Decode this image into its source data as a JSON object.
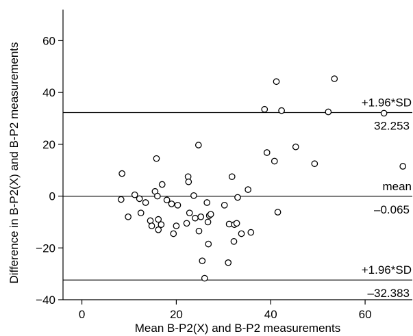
{
  "chart_data": {
    "type": "scatter",
    "title": "",
    "xlabel": "Mean B-P2(X) and B-P2 measurements",
    "ylabel": "Difference in B-P2(X) and B-P2 measurements",
    "xlim": [
      -4,
      70
    ],
    "ylim": [
      -40,
      72
    ],
    "x_ticks": [
      0,
      20,
      40,
      60
    ],
    "y_ticks": [
      -40,
      -20,
      0,
      20,
      40,
      60
    ],
    "grid": false,
    "reference_lines": [
      {
        "y": 32.253,
        "label": "+1.96*SD",
        "value_label": "32.253"
      },
      {
        "y": -0.065,
        "label": "mean",
        "value_label": "–0.065"
      },
      {
        "y": -32.383,
        "label": "+1.96*SD",
        "value_label": "–32.383"
      }
    ],
    "points": [
      [
        8.5,
        8.7
      ],
      [
        8.3,
        -1.3
      ],
      [
        9.8,
        -8.0
      ],
      [
        11.2,
        0.5
      ],
      [
        12.2,
        -1.0
      ],
      [
        12.5,
        -6.5
      ],
      [
        13.5,
        -2.5
      ],
      [
        14.5,
        -9.5
      ],
      [
        14.8,
        -11.5
      ],
      [
        15.5,
        1.8
      ],
      [
        15.8,
        14.5
      ],
      [
        16.0,
        0.0
      ],
      [
        16.2,
        -9.0
      ],
      [
        16.2,
        -13.0
      ],
      [
        16.8,
        -11.0
      ],
      [
        17.0,
        4.5
      ],
      [
        18.0,
        -1.5
      ],
      [
        19.0,
        -3.0
      ],
      [
        19.4,
        -14.5
      ],
      [
        20.0,
        -11.5
      ],
      [
        20.3,
        -3.5
      ],
      [
        22.2,
        -10.5
      ],
      [
        22.5,
        7.5
      ],
      [
        22.6,
        5.5
      ],
      [
        22.8,
        -6.5
      ],
      [
        23.7,
        0.2
      ],
      [
        24.0,
        -8.5
      ],
      [
        24.7,
        19.7
      ],
      [
        24.8,
        -13.5
      ],
      [
        25.2,
        -8.0
      ],
      [
        25.5,
        -25.0
      ],
      [
        26.0,
        -31.7
      ],
      [
        26.5,
        -2.5
      ],
      [
        26.7,
        -10.0
      ],
      [
        26.8,
        -18.5
      ],
      [
        27.0,
        -7.5
      ],
      [
        27.3,
        -7.0
      ],
      [
        30.2,
        -3.5
      ],
      [
        31.0,
        -25.7
      ],
      [
        31.2,
        -10.8
      ],
      [
        31.8,
        7.5
      ],
      [
        32.2,
        -17.5
      ],
      [
        32.3,
        -11.0
      ],
      [
        32.8,
        -10.5
      ],
      [
        33.0,
        -0.5
      ],
      [
        33.8,
        -14.5
      ],
      [
        35.2,
        2.5
      ],
      [
        35.8,
        -14.0
      ],
      [
        38.7,
        33.5
      ],
      [
        39.2,
        16.8
      ],
      [
        40.8,
        13.5
      ],
      [
        41.2,
        44.2
      ],
      [
        41.5,
        -6.2
      ],
      [
        42.3,
        33.0
      ],
      [
        45.3,
        19.0
      ],
      [
        49.3,
        12.5
      ],
      [
        52.2,
        32.5
      ],
      [
        53.5,
        45.3
      ],
      [
        64.0,
        32.0
      ],
      [
        68.0,
        11.5
      ]
    ]
  }
}
